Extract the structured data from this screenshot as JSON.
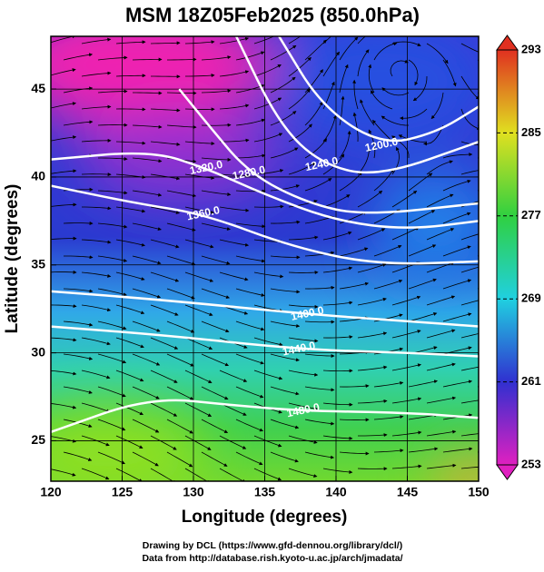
{
  "chart_data": {
    "type": "map",
    "title": "MSM 18Z05Feb2025 (850.0hPa)",
    "x_label": "Longitude (degrees)",
    "y_label": "Latitude  (degrees)",
    "xlim": [
      120,
      150
    ],
    "ylim": [
      22.7,
      48
    ],
    "xticks": [
      120,
      125,
      130,
      135,
      140,
      145,
      150
    ],
    "yticks": [
      25,
      30,
      35,
      40,
      45
    ],
    "grid": true,
    "colorbar": {
      "range": [
        253,
        293
      ],
      "ticks": [
        253,
        261,
        269,
        277,
        285,
        293
      ],
      "colors": [
        "#e020c0",
        "#3030d0",
        "#20d0e0",
        "#30d040",
        "#e0e020",
        "#e03020"
      ]
    },
    "contours": [
      {
        "level": {
          "value": 1200,
          "label": "1200.0"
        },
        "label_at": [
          143.2,
          41.8
        ],
        "lon": [
          136,
          139,
          143.2,
          147,
          150
        ],
        "lat": [
          48,
          44,
          41.8,
          42.5,
          44
        ]
      },
      {
        "level": {
          "value": 1240,
          "label": "1240.0"
        },
        "label_at": [
          139,
          40.7
        ],
        "lon": [
          133,
          136,
          139,
          143,
          150
        ],
        "lat": [
          48,
          43,
          40.7,
          40,
          42
        ]
      },
      {
        "level": {
          "value": 1280,
          "label": "1280.0"
        },
        "label_at": [
          133.9,
          40.2
        ],
        "lon": [
          129,
          131,
          133.9,
          138,
          142,
          150
        ],
        "lat": [
          45,
          43,
          40.2,
          38.5,
          37.8,
          38.5
        ]
      },
      {
        "level": {
          "value": 1320,
          "label": "1320.0"
        },
        "label_at": [
          130.9,
          40.5
        ],
        "lon": [
          120,
          127,
          130.9,
          135,
          140,
          145,
          150
        ],
        "lat": [
          41,
          41.5,
          40.5,
          39,
          37.5,
          37,
          37.5
        ]
      },
      {
        "level": {
          "value": 1360,
          "label": "1360.0"
        },
        "label_at": [
          130.7,
          37.9
        ],
        "lon": [
          120,
          126,
          130.7,
          137,
          143,
          150
        ],
        "lat": [
          39.5,
          38.5,
          37.9,
          36,
          35,
          35.2
        ]
      },
      {
        "level": {
          "value": 1400,
          "label": "1400.0"
        },
        "label_at": [
          138,
          32.2
        ],
        "lon": [
          120,
          128,
          138,
          145,
          150
        ],
        "lat": [
          33.5,
          33,
          32.2,
          31.8,
          31.5
        ]
      },
      {
        "level": {
          "value": 1440,
          "label": "1440.0"
        },
        "label_at": [
          137.4,
          30.2
        ],
        "lon": [
          120,
          128,
          137.4,
          145,
          150
        ],
        "lat": [
          31.5,
          31,
          30.2,
          30,
          29.8
        ]
      },
      {
        "level": {
          "value": 1480,
          "label": "1480.0"
        },
        "label_at": [
          137.7,
          26.7
        ],
        "lon": [
          120,
          127,
          133,
          137.7,
          145,
          150
        ],
        "lat": [
          25.5,
          27.5,
          27,
          26.7,
          26.6,
          26.3
        ]
      }
    ],
    "footer": [
      "Drawing by DCL (https://www.gfd-dennou.org/library/dcl/)",
      "Data from http://database.rish.kyoto-u.ac.jp/arch/jmadata/"
    ]
  }
}
